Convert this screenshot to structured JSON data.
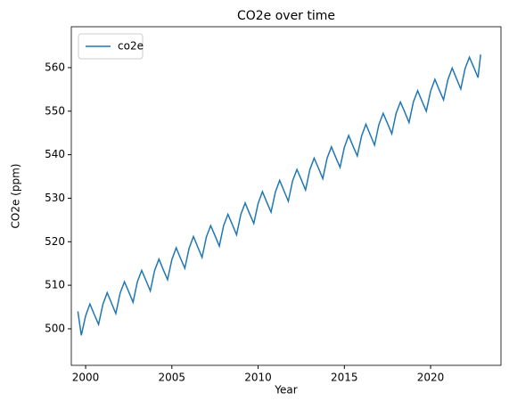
{
  "chart_data": {
    "type": "line",
    "title": "CO2e over time",
    "xlabel": "Year",
    "ylabel": "CO2e (ppm)",
    "x": [
      1999.55,
      1999.75,
      2000,
      2000.25,
      2000.5,
      2000.75,
      2001,
      2001.25,
      2001.5,
      2001.75,
      2002,
      2002.25,
      2002.5,
      2002.75,
      2003,
      2003.25,
      2003.5,
      2003.75,
      2004,
      2004.25,
      2004.5,
      2004.75,
      2005,
      2005.25,
      2005.5,
      2005.75,
      2006,
      2006.25,
      2006.5,
      2006.75,
      2007,
      2007.25,
      2007.5,
      2007.75,
      2008,
      2008.25,
      2008.5,
      2008.75,
      2009,
      2009.25,
      2009.5,
      2009.75,
      2010,
      2010.25,
      2010.5,
      2010.75,
      2011,
      2011.25,
      2011.5,
      2011.75,
      2012,
      2012.25,
      2012.5,
      2012.75,
      2013,
      2013.25,
      2013.5,
      2013.75,
      2014,
      2014.25,
      2014.5,
      2014.75,
      2015,
      2015.25,
      2015.5,
      2015.75,
      2016,
      2016.25,
      2016.5,
      2016.75,
      2017,
      2017.25,
      2017.5,
      2017.75,
      2018,
      2018.25,
      2018.5,
      2018.75,
      2019,
      2019.25,
      2019.5,
      2019.75,
      2020,
      2020.25,
      2020.5,
      2020.75,
      2021,
      2021.25,
      2021.5,
      2021.75,
      2022,
      2022.25,
      2022.5,
      2022.75,
      2022.9
    ],
    "series": [
      {
        "name": "co2e",
        "color": "#1f77b4",
        "values": [
          504,
          498.5,
          503.0,
          505.7,
          503.3,
          501.0,
          505.6,
          508.3,
          505.9,
          503.5,
          508.2,
          510.8,
          508.5,
          506.1,
          510.8,
          513.4,
          511.1,
          508.7,
          513.4,
          516.0,
          513.6,
          511.3,
          515.9,
          518.6,
          516.2,
          513.9,
          518.5,
          521.2,
          518.8,
          516.4,
          521.1,
          523.7,
          521.4,
          519.0,
          523.7,
          526.3,
          524.0,
          521.6,
          526.3,
          528.9,
          526.5,
          524.2,
          528.8,
          531.5,
          529.1,
          526.8,
          531.4,
          534.1,
          531.7,
          529.3,
          534.0,
          536.6,
          534.3,
          531.9,
          536.6,
          539.2,
          536.9,
          534.5,
          539.2,
          541.8,
          539.4,
          537.1,
          541.7,
          544.4,
          542.0,
          539.7,
          544.3,
          547.0,
          544.6,
          542.2,
          546.9,
          549.5,
          547.2,
          544.8,
          549.5,
          552.1,
          549.8,
          547.4,
          552.1,
          554.7,
          552.3,
          550.0,
          554.6,
          557.3,
          554.9,
          552.6,
          557.2,
          559.9,
          557.5,
          555.1,
          559.8,
          562.4,
          560.1,
          557.7,
          563
        ]
      }
    ],
    "xlim": [
      1999.17,
      2024.08
    ],
    "xticks": [
      2000,
      2005,
      2010,
      2015,
      2020
    ],
    "ylim": [
      491.6,
      569.4
    ],
    "yticks": [
      500,
      510,
      520,
      530,
      540,
      550,
      560
    ],
    "legend": "upper left"
  }
}
